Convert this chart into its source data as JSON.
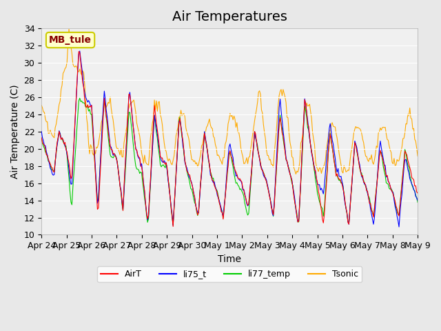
{
  "title": "Air Temperatures",
  "xlabel": "Time",
  "ylabel": "Air Temperature (C)",
  "ylim": [
    10,
    34
  ],
  "xlim": [
    0,
    15
  ],
  "yticks": [
    10,
    12,
    14,
    16,
    18,
    20,
    22,
    24,
    26,
    28,
    30,
    32,
    34
  ],
  "bg_color": "#e8e8e8",
  "plot_bg_color": "#f0f0f0",
  "legend_labels": [
    "AirT",
    "li75_t",
    "li77_temp",
    "Tsonic"
  ],
  "line_colors": [
    "#ff0000",
    "#0000ff",
    "#00cc00",
    "#ffaa00"
  ],
  "annotation_text": "MB_tule",
  "annotation_color": "#880000",
  "annotation_bg": "#ffffcc",
  "annotation_border": "#cccc00",
  "tick_labels": [
    "Apr 24",
    "Apr 25",
    "Apr 26",
    "Apr 27",
    "Apr 28",
    "Apr 29",
    "Apr 30",
    "May 1",
    "May 2",
    "May 3",
    "May 4",
    "May 5",
    "May 6",
    "May 7",
    "May 8",
    "May 9"
  ],
  "title_fontsize": 14,
  "axis_label_fontsize": 10,
  "tick_fontsize": 9,
  "line_width": 0.8
}
